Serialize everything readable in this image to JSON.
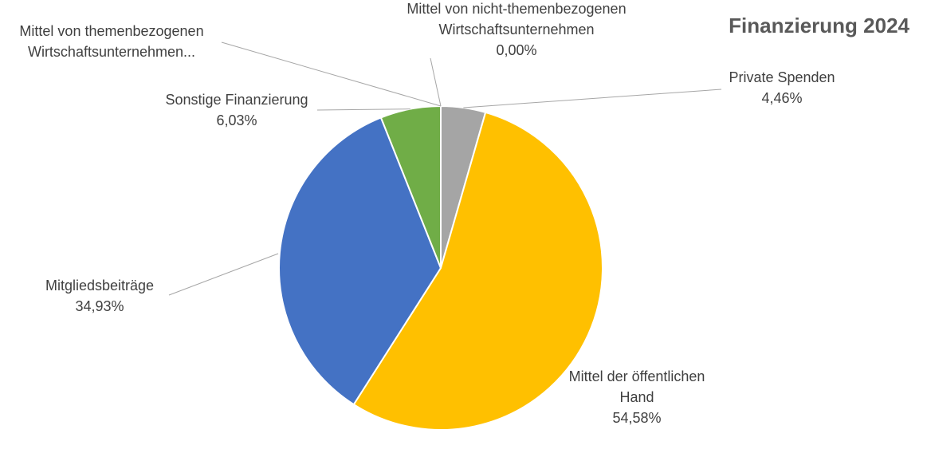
{
  "chart_data": {
    "type": "pie",
    "title": "Finanzierung 2024",
    "start_angle_deg": 0,
    "direction": "clockwise",
    "slices": [
      {
        "name": "Private Spenden",
        "label_lines": [
          "Private Spenden"
        ],
        "value": 4.46,
        "value_label": "4,46%",
        "color": "#a5a5a5"
      },
      {
        "name": "Mittel der öffentlichen Hand",
        "label_lines": [
          "Mittel der öffentlichen",
          "Hand"
        ],
        "value": 54.58,
        "value_label": "54,58%",
        "color": "#ffc000"
      },
      {
        "name": "Mitgliedsbeiträge",
        "label_lines": [
          "Mitgliedsbeiträge"
        ],
        "value": 34.93,
        "value_label": "34,93%",
        "color": "#4472c4"
      },
      {
        "name": "Sonstige Finanzierung",
        "label_lines": [
          "Sonstige Finanzierung"
        ],
        "value": 6.03,
        "value_label": "6,03%",
        "color": "#70ad47"
      },
      {
        "name": "Mittel von themenbezogenen Wirtschaftsunternehmen",
        "label_lines": [
          "Mittel von themenbezogenen",
          "Wirtschaftsunternehmen..."
        ],
        "value": 0.0,
        "value_label": "",
        "color": "#5b9bd5"
      },
      {
        "name": "Mittel von nicht-themenbezogenen Wirtschaftsunternehmen",
        "label_lines": [
          "Mittel von nicht-themenbezogenen",
          "Wirtschaftsunternehmen"
        ],
        "value": 0.0,
        "value_label": "0,00%",
        "color": "#ed7d31"
      }
    ]
  }
}
